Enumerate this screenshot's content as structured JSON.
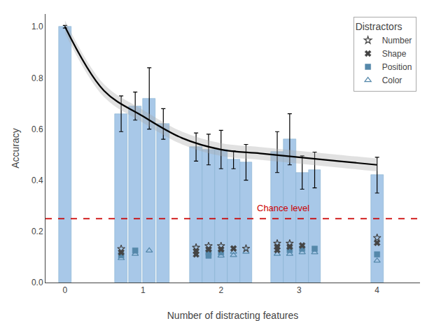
{
  "chart_data": {
    "type": "bar",
    "xlabel": "Number of distracting features",
    "ylabel": "Accuracy",
    "xlim": [
      -0.25,
      4.55
    ],
    "ylim": [
      0.0,
      1.05
    ],
    "xticks": [
      0,
      1,
      2,
      3,
      4
    ],
    "yticks": [
      {
        "value": 0,
        "label": "0.0"
      },
      {
        "value": 0.2,
        "label": "0.2"
      },
      {
        "value": 0.4,
        "label": "0.4"
      },
      {
        "value": 0.6,
        "label": "0.6"
      },
      {
        "value": 0.8,
        "label": "0.8"
      },
      {
        "value": 1,
        "label": "1.0"
      }
    ],
    "grid": false,
    "legend": "upper right",
    "legend_title": "Distractors",
    "series": [
      {
        "type": "bar",
        "color": "#a8c8e8",
        "x": [
          0.0,
          0.72,
          0.9,
          1.08,
          1.26,
          1.68,
          1.84,
          2.0,
          2.16,
          2.32,
          2.72,
          2.88,
          3.04,
          3.2,
          4.0
        ],
        "values": [
          1.0,
          0.66,
          0.69,
          0.72,
          0.62,
          0.53,
          0.52,
          0.52,
          0.48,
          0.47,
          0.51,
          0.56,
          0.43,
          0.44,
          0.42
        ],
        "errors": [
          0.005,
          0.07,
          0.055,
          0.12,
          0.06,
          0.055,
          0.06,
          0.075,
          0.035,
          0.07,
          0.08,
          0.1,
          0.065,
          0.07,
          0.07
        ]
      },
      {
        "type": "band",
        "color": "#aaaaaa",
        "x": [
          0.0,
          0.5,
          1.0,
          1.5,
          2.0,
          2.5,
          3.0,
          3.5,
          4.0
        ],
        "values": [
          1.0,
          0.75,
          0.65,
          0.565,
          0.52,
          0.505,
          0.49,
          0.475,
          0.46
        ],
        "band": 0.025
      },
      {
        "type": "line",
        "color": "#000000",
        "x": [
          0.0,
          0.5,
          1.0,
          1.5,
          2.0,
          2.5,
          3.0,
          3.5,
          4.0
        ],
        "values": [
          1.0,
          0.75,
          0.65,
          0.565,
          0.52,
          0.505,
          0.49,
          0.475,
          0.46
        ]
      },
      {
        "type": "hline",
        "color": "#cc0000",
        "line_style": "dashed",
        "values": [
          0.25
        ]
      },
      {
        "type": "scatter",
        "name": "Color",
        "marker": "triangle-up-open",
        "color": "#5588aa",
        "x": [
          0.72,
          0.9,
          1.08,
          2.0,
          2.16,
          2.16,
          2.32,
          2.72,
          2.88,
          3.04,
          3.2,
          4.0
        ],
        "values": [
          0.095,
          0.112,
          0.125,
          0.105,
          0.12,
          0.107,
          0.12,
          0.112,
          0.112,
          0.118,
          0.118,
          0.085
        ]
      },
      {
        "type": "scatter",
        "name": "Position",
        "marker": "square",
        "color": "#5588aa",
        "x": [
          0.72,
          0.9,
          1.84,
          1.84,
          2.0,
          2.88,
          3.04,
          3.2,
          4.0
        ],
        "values": [
          0.107,
          0.125,
          0.118,
          0.105,
          0.118,
          0.127,
          0.132,
          0.132,
          0.11
        ]
      },
      {
        "type": "scatter",
        "name": "Shape",
        "marker": "x",
        "color": "#444444",
        "x": [
          0.72,
          1.68,
          1.68,
          1.84,
          2.0,
          2.16,
          2.72,
          2.72,
          2.88,
          3.04,
          4.0
        ],
        "values": [
          0.118,
          0.123,
          0.11,
          0.13,
          0.13,
          0.133,
          0.14,
          0.127,
          0.14,
          0.145,
          0.155
        ]
      },
      {
        "type": "scatter",
        "name": "Number",
        "marker": "star-open",
        "color": "#444444",
        "x": [
          0.72,
          1.68,
          1.84,
          2.0,
          2.32,
          2.72,
          2.88,
          4.0
        ],
        "values": [
          0.132,
          0.137,
          0.143,
          0.143,
          0.133,
          0.153,
          0.153,
          0.175
        ]
      }
    ],
    "annotations": [
      {
        "text": "Chance level",
        "x": 2.8,
        "y": 0.265,
        "color": "#cc0000"
      }
    ]
  }
}
